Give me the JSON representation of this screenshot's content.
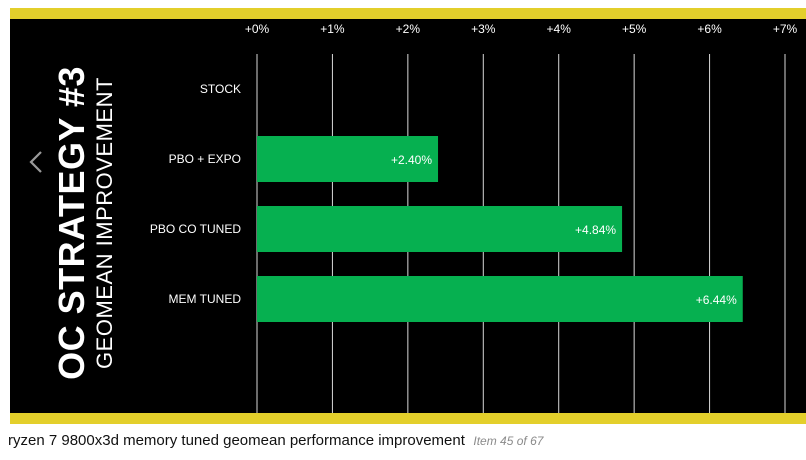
{
  "colors": {
    "accent_yellow": "#e3cf2b",
    "bar_green": "#06b050",
    "background": "#000000",
    "gridline": "#ffffff",
    "text": "#ffffff"
  },
  "icons": {
    "prev": "chevron-left-icon"
  },
  "chart_data": {
    "type": "bar",
    "orientation": "horizontal",
    "title": "OC STRATEGY #3",
    "subtitle": "GEOMEAN IMPROVEMENT",
    "categories": [
      "STOCK",
      "PBO + EXPO",
      "PBO CO TUNED",
      "MEM TUNED"
    ],
    "values": [
      0,
      2.4,
      4.84,
      6.44
    ],
    "data_labels": [
      "",
      "+2.40%",
      "+4.84%",
      "+6.44%"
    ],
    "xlim": [
      0,
      7
    ],
    "xticks": [
      "+0%",
      "+1%",
      "+2%",
      "+3%",
      "+4%",
      "+5%",
      "+6%",
      "+7%"
    ],
    "grid": true,
    "tick_position": "top"
  },
  "caption": {
    "text": "ryzen 7 9800x3d memory tuned geomean performance improvement",
    "counter": "Item 45 of 67"
  }
}
